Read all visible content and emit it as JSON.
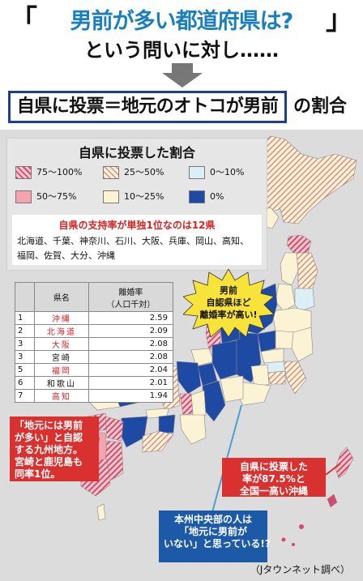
{
  "header": {
    "bracket_open": "「",
    "question": "男前が多い都道府県は?",
    "bracket_close": "」",
    "line2": "という問いに対し……",
    "main": "自県に投票＝地元のオトコが男前",
    "ratio": "の割合"
  },
  "legend": {
    "title": "自県に投票した割合",
    "items": [
      {
        "label": "75〜100%",
        "color": "#d64a6e",
        "pattern": "stripe-dark"
      },
      {
        "label": "25〜50%",
        "color": "#e7a6a2",
        "pattern": "stripe-light"
      },
      {
        "label": "0〜10%",
        "color": "#dceff6",
        "pattern": "solid"
      },
      {
        "label": "50〜75%",
        "color": "#f3a4ae",
        "pattern": "solid"
      },
      {
        "label": "10〜25%",
        "color": "#fbf3d4",
        "pattern": "solid"
      },
      {
        "label": "0%",
        "color": "#1f4aa3",
        "pattern": "solid"
      }
    ],
    "note_title": "自県の支持率が単独1位なのは12県",
    "note_line1": "北海道、千葉、神奈川、石川、大阪、兵庫、岡山、高知、",
    "note_line2": "福岡、佐賀、大分、沖縄"
  },
  "burst": {
    "line1": "男前",
    "line2": "自認県ほど",
    "line3": "離婚率が高い!"
  },
  "table": {
    "col_pref": "県名",
    "col_rate": "離婚率",
    "col_rate_sub": "（人口千対）",
    "rows": [
      {
        "rank": "1",
        "pref": "沖縄",
        "rate": "2.59",
        "red": true
      },
      {
        "rank": "2",
        "pref": "北海道",
        "rate": "2.09",
        "red": true
      },
      {
        "rank": "3",
        "pref": "大阪",
        "rate": "2.08",
        "red": true
      },
      {
        "rank": "3",
        "pref": "宮崎",
        "rate": "2.08",
        "red": false
      },
      {
        "rank": "5",
        "pref": "福岡",
        "rate": "2.04",
        "red": true
      },
      {
        "rank": "6",
        "pref": "和歌山",
        "rate": "2.01",
        "red": false
      },
      {
        "rank": "7",
        "pref": "高知",
        "rate": "1.94",
        "red": true
      }
    ]
  },
  "callouts": {
    "kyushu": [
      "「地元には男前",
      "が多い」と自認",
      "する九州地方。",
      "宮崎と鹿児島も",
      "同率1位。"
    ],
    "okinawa": [
      "自県に投票した",
      "率が87.5%と",
      "全国一高い沖縄"
    ],
    "honshu": [
      "本州中央部の人は",
      "「地元に男前が",
      "いない」と思っている!?"
    ]
  },
  "credit": "（Jタウンネット調べ）",
  "colors": {
    "title_blue": "#1a7fbf",
    "box_border": "#1c3f8f",
    "callout_red": "#d9312f",
    "callout_blue": "#1c5aa8",
    "sea_gray": "#dcdcdc"
  }
}
